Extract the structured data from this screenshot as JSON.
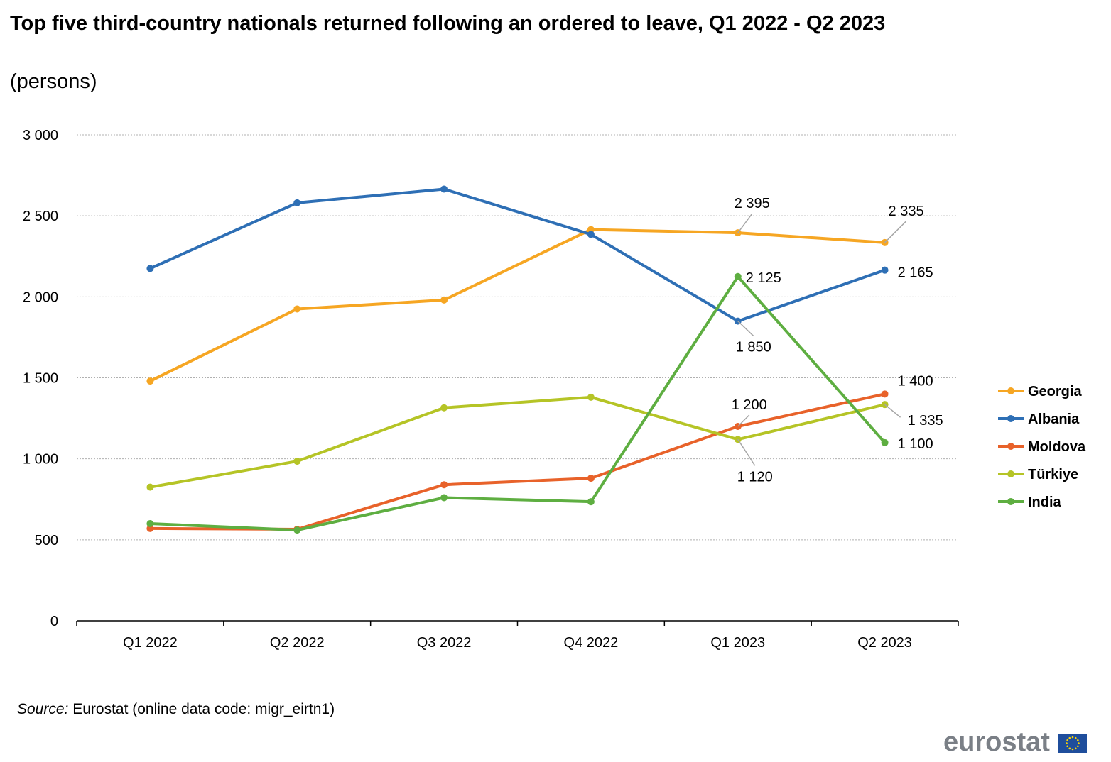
{
  "title": "Top five third-country nationals returned following an ordered to leave, Q1 2022 - Q2 2023",
  "subtitle": "(persons)",
  "source_label": "Source:",
  "source_text": " Eurostat (online data code: migr_eirtn1)",
  "logo_text": "eurostat",
  "chart_data": {
    "type": "line",
    "categories": [
      "Q1 2022",
      "Q2 2022",
      "Q3 2022",
      "Q4 2022",
      "Q1 2023",
      "Q2 2023"
    ],
    "ylim": [
      0,
      3000
    ],
    "yticks": [
      0,
      500,
      1000,
      1500,
      2000,
      2500,
      3000
    ],
    "ytick_labels": [
      "0",
      "500",
      "1 000",
      "1 500",
      "2 000",
      "2 500",
      "3 000"
    ],
    "grid": true,
    "legend_position": "right",
    "series": [
      {
        "name": "Georgia",
        "color": "#f6a623",
        "values": [
          1480,
          1925,
          1980,
          2415,
          2395,
          2335
        ],
        "labels": [
          null,
          null,
          null,
          null,
          "2 395",
          "2 335"
        ]
      },
      {
        "name": "Albania",
        "color": "#2e6fb5",
        "values": [
          2175,
          2580,
          2665,
          2385,
          1850,
          2165
        ],
        "labels": [
          null,
          null,
          null,
          null,
          "1 850",
          "2 165"
        ]
      },
      {
        "name": "Moldova",
        "color": "#e8622a",
        "values": [
          570,
          565,
          840,
          880,
          1200,
          1400
        ],
        "labels": [
          null,
          null,
          null,
          null,
          "1 200",
          "1 400"
        ]
      },
      {
        "name": "Türkiye",
        "color": "#b5c426",
        "values": [
          825,
          985,
          1315,
          1380,
          1120,
          1335
        ],
        "labels": [
          null,
          null,
          null,
          null,
          "1 120",
          "1 335"
        ]
      },
      {
        "name": "India",
        "color": "#5eae41",
        "values": [
          600,
          560,
          760,
          735,
          2125,
          1100
        ],
        "labels": [
          null,
          null,
          null,
          null,
          "2 125",
          "1 100"
        ]
      }
    ]
  }
}
